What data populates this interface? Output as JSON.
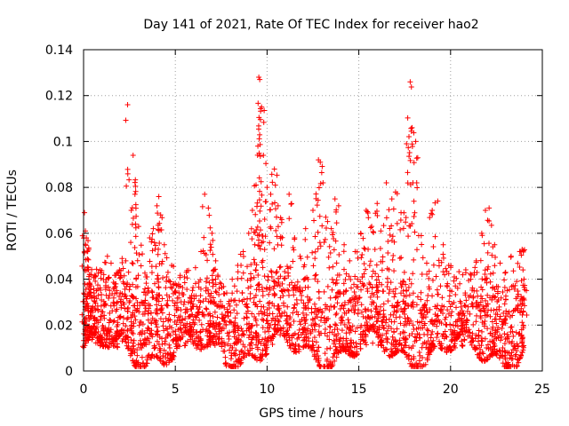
{
  "chart_data": {
    "type": "scatter",
    "title": "Day 141 of 2021, Rate Of TEC Index for receiver hao2",
    "xlabel": "GPS time / hours",
    "ylabel": "ROTI / TECUs",
    "xlim": [
      0,
      25
    ],
    "ylim": [
      0,
      0.14
    ],
    "xticks": [
      0,
      5,
      10,
      15,
      20,
      25
    ],
    "xtick_labels": [
      "0",
      "5",
      "10",
      "15",
      "20",
      "25"
    ],
    "yticks": [
      0,
      0.02,
      0.04,
      0.06,
      0.08,
      0.1,
      0.12,
      0.14
    ],
    "ytick_labels": [
      "0",
      "0.02",
      "0.04",
      "0.06",
      "0.08",
      "0.1",
      "0.12",
      "0.14"
    ],
    "grid": true,
    "marker": "+",
    "color": "#ff0000",
    "series": [
      {
        "x": [
          0.05,
          0.1,
          0.15,
          0.2,
          0.25,
          0.3,
          0.4,
          0.5,
          0.7,
          0.9,
          1.1,
          1.3,
          1.5,
          1.7,
          1.9,
          2.1,
          2.3,
          2.4,
          2.6,
          2.7,
          2.8,
          3.0,
          3.2,
          3.4,
          3.6,
          3.8,
          4.0,
          4.1,
          4.2,
          4.4,
          4.6,
          4.8,
          5.0,
          5.2,
          5.5,
          5.8,
          6.1,
          6.4,
          6.6,
          6.8,
          7.0,
          7.2,
          7.5,
          7.8,
          8.1,
          8.4,
          8.7,
          9.0,
          9.2,
          9.4,
          9.5,
          9.55,
          9.6,
          9.7,
          9.8,
          10.0,
          10.2,
          10.4,
          10.6,
          10.8,
          11.2,
          11.5,
          11.8,
          12.1,
          12.5,
          12.8,
          12.9,
          13.2,
          13.5,
          13.7,
          13.9,
          14.2,
          14.5,
          14.8,
          15.1,
          15.4,
          15.7,
          16.0,
          16.2,
          16.5,
          16.8,
          17.0,
          17.3,
          17.6,
          17.8,
          17.9,
          18.1,
          18.4,
          18.7,
          19.0,
          19.3,
          19.6,
          19.9,
          20.2,
          20.5,
          20.8,
          21.1,
          21.4,
          21.7,
          21.9,
          22.1,
          22.4,
          22.7,
          23.0,
          23.3,
          23.6,
          23.8,
          23.9,
          24.0
        ],
        "y": [
          0.069,
          0.061,
          0.058,
          0.052,
          0.045,
          0.04,
          0.033,
          0.028,
          0.035,
          0.044,
          0.042,
          0.05,
          0.047,
          0.038,
          0.043,
          0.049,
          0.048,
          0.116,
          0.07,
          0.094,
          0.077,
          0.063,
          0.051,
          0.041,
          0.058,
          0.062,
          0.072,
          0.076,
          0.068,
          0.055,
          0.043,
          0.046,
          0.038,
          0.034,
          0.041,
          0.032,
          0.045,
          0.052,
          0.077,
          0.071,
          0.06,
          0.048,
          0.038,
          0.034,
          0.04,
          0.046,
          0.052,
          0.06,
          0.07,
          0.081,
          0.098,
          0.128,
          0.127,
          0.115,
          0.094,
          0.08,
          0.077,
          0.088,
          0.072,
          0.066,
          0.077,
          0.058,
          0.05,
          0.062,
          0.07,
          0.092,
          0.091,
          0.067,
          0.062,
          0.075,
          0.072,
          0.055,
          0.048,
          0.052,
          0.06,
          0.07,
          0.063,
          0.073,
          0.061,
          0.082,
          0.075,
          0.078,
          0.069,
          0.099,
          0.126,
          0.106,
          0.1,
          0.059,
          0.047,
          0.07,
          0.074,
          0.055,
          0.046,
          0.041,
          0.038,
          0.034,
          0.04,
          0.048,
          0.06,
          0.07,
          0.071,
          0.055,
          0.047,
          0.043,
          0.05,
          0.039,
          0.052,
          0.053,
          0.04
        ]
      }
    ]
  }
}
